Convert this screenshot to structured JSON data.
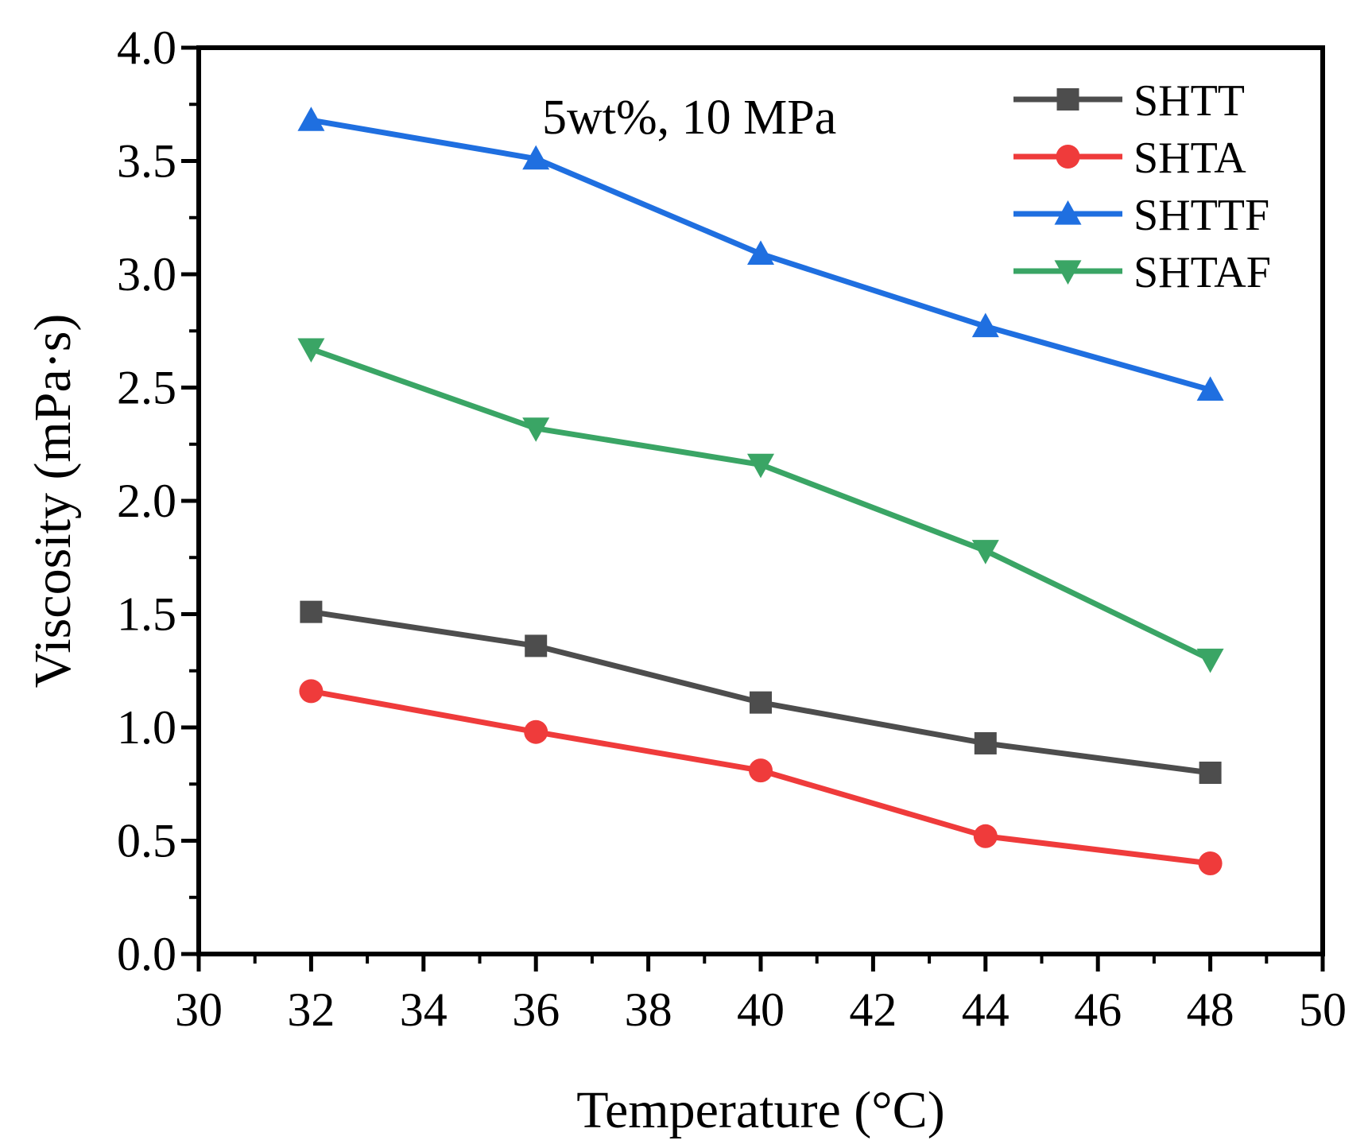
{
  "chart_data": {
    "type": "line",
    "title": "",
    "annotation": "5wt%, 10 MPa",
    "xlabel": "Temperature (°C)",
    "ylabel": "Viscosity (mPa·s)",
    "xlim": [
      30,
      50
    ],
    "ylim": [
      0.0,
      4.0
    ],
    "xticks": [
      30,
      32,
      34,
      36,
      38,
      40,
      42,
      44,
      46,
      48,
      50
    ],
    "xtick_labels": [
      "30",
      "32",
      "34",
      "36",
      "38",
      "40",
      "42",
      "44",
      "46",
      "48",
      "50"
    ],
    "yticks": [
      0.0,
      0.5,
      1.0,
      1.5,
      2.0,
      2.5,
      3.0,
      3.5,
      4.0
    ],
    "ytick_labels": [
      "0.0",
      "0.5",
      "1.0",
      "1.5",
      "2.0",
      "2.5",
      "3.0",
      "3.5",
      "4.0"
    ],
    "grid": false,
    "legend_position": "top-right",
    "x": [
      32,
      36,
      40,
      44,
      48
    ],
    "series": [
      {
        "name": "SHTT",
        "marker": "square",
        "color": "#4d4d4d",
        "values": [
          1.51,
          1.36,
          1.11,
          0.93,
          0.8
        ]
      },
      {
        "name": "SHTA",
        "marker": "circle",
        "color": "#ef3b3b",
        "values": [
          1.16,
          0.98,
          0.81,
          0.52,
          0.4
        ]
      },
      {
        "name": "SHTTF",
        "marker": "triangle-up",
        "color": "#1f6fe0",
        "values": [
          3.68,
          3.51,
          3.09,
          2.77,
          2.49
        ]
      },
      {
        "name": "SHTAF",
        "marker": "triangle-down",
        "color": "#3aa565",
        "values": [
          2.67,
          2.32,
          2.16,
          1.78,
          1.3
        ]
      }
    ]
  }
}
